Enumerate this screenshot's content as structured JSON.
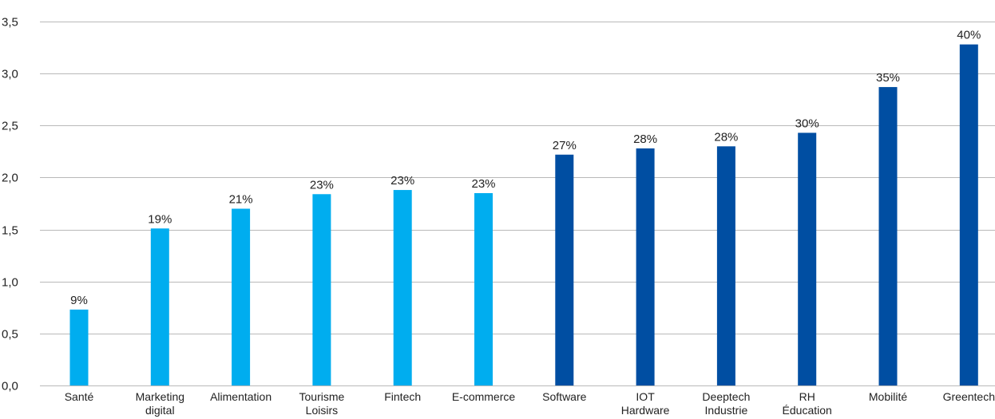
{
  "chart_data": {
    "type": "bar",
    "categories": [
      [
        "Santé"
      ],
      [
        "Marketing",
        "digital"
      ],
      [
        "Alimentation"
      ],
      [
        "Tourisme",
        "Loisirs"
      ],
      [
        "Fintech"
      ],
      [
        "E-commerce"
      ],
      [
        "Software"
      ],
      [
        "IOT",
        "Hardware"
      ],
      [
        "Deeptech",
        "Industrie"
      ],
      [
        "RH",
        "Éducation"
      ],
      [
        "Mobilité"
      ],
      [
        "Greentech"
      ]
    ],
    "values": [
      0.73,
      1.51,
      1.7,
      1.84,
      1.88,
      1.85,
      2.22,
      2.28,
      2.3,
      2.43,
      2.87,
      3.28
    ],
    "data_labels": [
      "9%",
      "19%",
      "21%",
      "23%",
      "23%",
      "23%",
      "27%",
      "28%",
      "28%",
      "30%",
      "35%",
      "40%"
    ],
    "bar_colors": [
      "#00adef",
      "#00adef",
      "#00adef",
      "#00adef",
      "#00adef",
      "#00adef",
      "#004ea2",
      "#004ea2",
      "#004ea2",
      "#004ea2",
      "#004ea2",
      "#004ea2"
    ],
    "y_ticks": [
      "0,0",
      "0,5",
      "1,0",
      "1,5",
      "2,0",
      "2,5",
      "3,0",
      "3,5"
    ],
    "ylim": [
      0,
      3.5
    ],
    "grid": true,
    "title": "",
    "xlabel": "",
    "ylabel": ""
  }
}
